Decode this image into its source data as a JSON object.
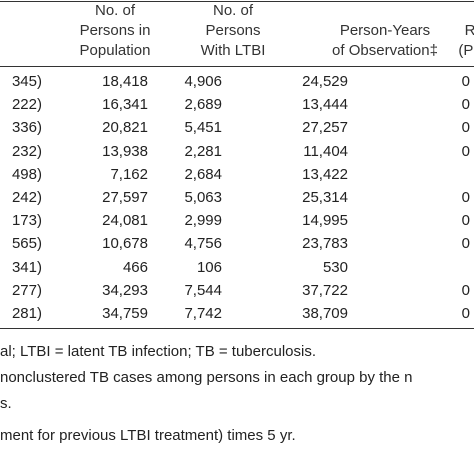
{
  "table": {
    "columns": [
      {
        "lines": [
          "No. of",
          "Persons in",
          "Population"
        ]
      },
      {
        "lines": [
          "No. of",
          "Persons",
          "With LTBI"
        ]
      },
      {
        "lines": [
          "Person-Years",
          "of Observation‡"
        ]
      },
      {
        "lines": [
          "R",
          "(Pe"
        ]
      }
    ],
    "rows": [
      {
        "label": "345)",
        "population": "18,418",
        "ltbi": "4,906",
        "person_years": "24,529",
        "rate": "0"
      },
      {
        "label": "222)",
        "population": "16,341",
        "ltbi": "2,689",
        "person_years": "13,444",
        "rate": "0"
      },
      {
        "label": "336)",
        "population": "20,821",
        "ltbi": "5,451",
        "person_years": "27,257",
        "rate": "0"
      },
      {
        "label": "232)",
        "population": "13,938",
        "ltbi": "2,281",
        "person_years": "11,404",
        "rate": "0"
      },
      {
        "label": "498)",
        "population": "7,162",
        "ltbi": "2,684",
        "person_years": "13,422"
      },
      {
        "label": "242)",
        "population": "27,597",
        "ltbi": "5,063",
        "person_years": "25,314",
        "rate": "0"
      },
      {
        "label": "173)",
        "population": "24,081",
        "ltbi": "2,999",
        "person_years": "14,995",
        "rate": "0"
      },
      {
        "label": "565)",
        "population": "10,678",
        "ltbi": "4,756",
        "person_years": "23,783",
        "rate": "0"
      },
      {
        "label": "341)",
        "population": "466",
        "ltbi": "106",
        "person_years": "530"
      },
      {
        "label": "277)",
        "population": "34,293",
        "ltbi": "7,544",
        "person_years": "37,722",
        "rate": "0"
      },
      {
        "label": "281)",
        "population": "34,759",
        "ltbi": "7,742",
        "person_years": "38,709",
        "rate": "0"
      }
    ]
  },
  "footnotes": [
    "al; LTBI = latent TB infection; TB = tuberculosis.",
    "nonclustered TB cases among persons in each group by the n",
    "s.",
    "ment for previous LTBI treatment) times 5 yr."
  ]
}
